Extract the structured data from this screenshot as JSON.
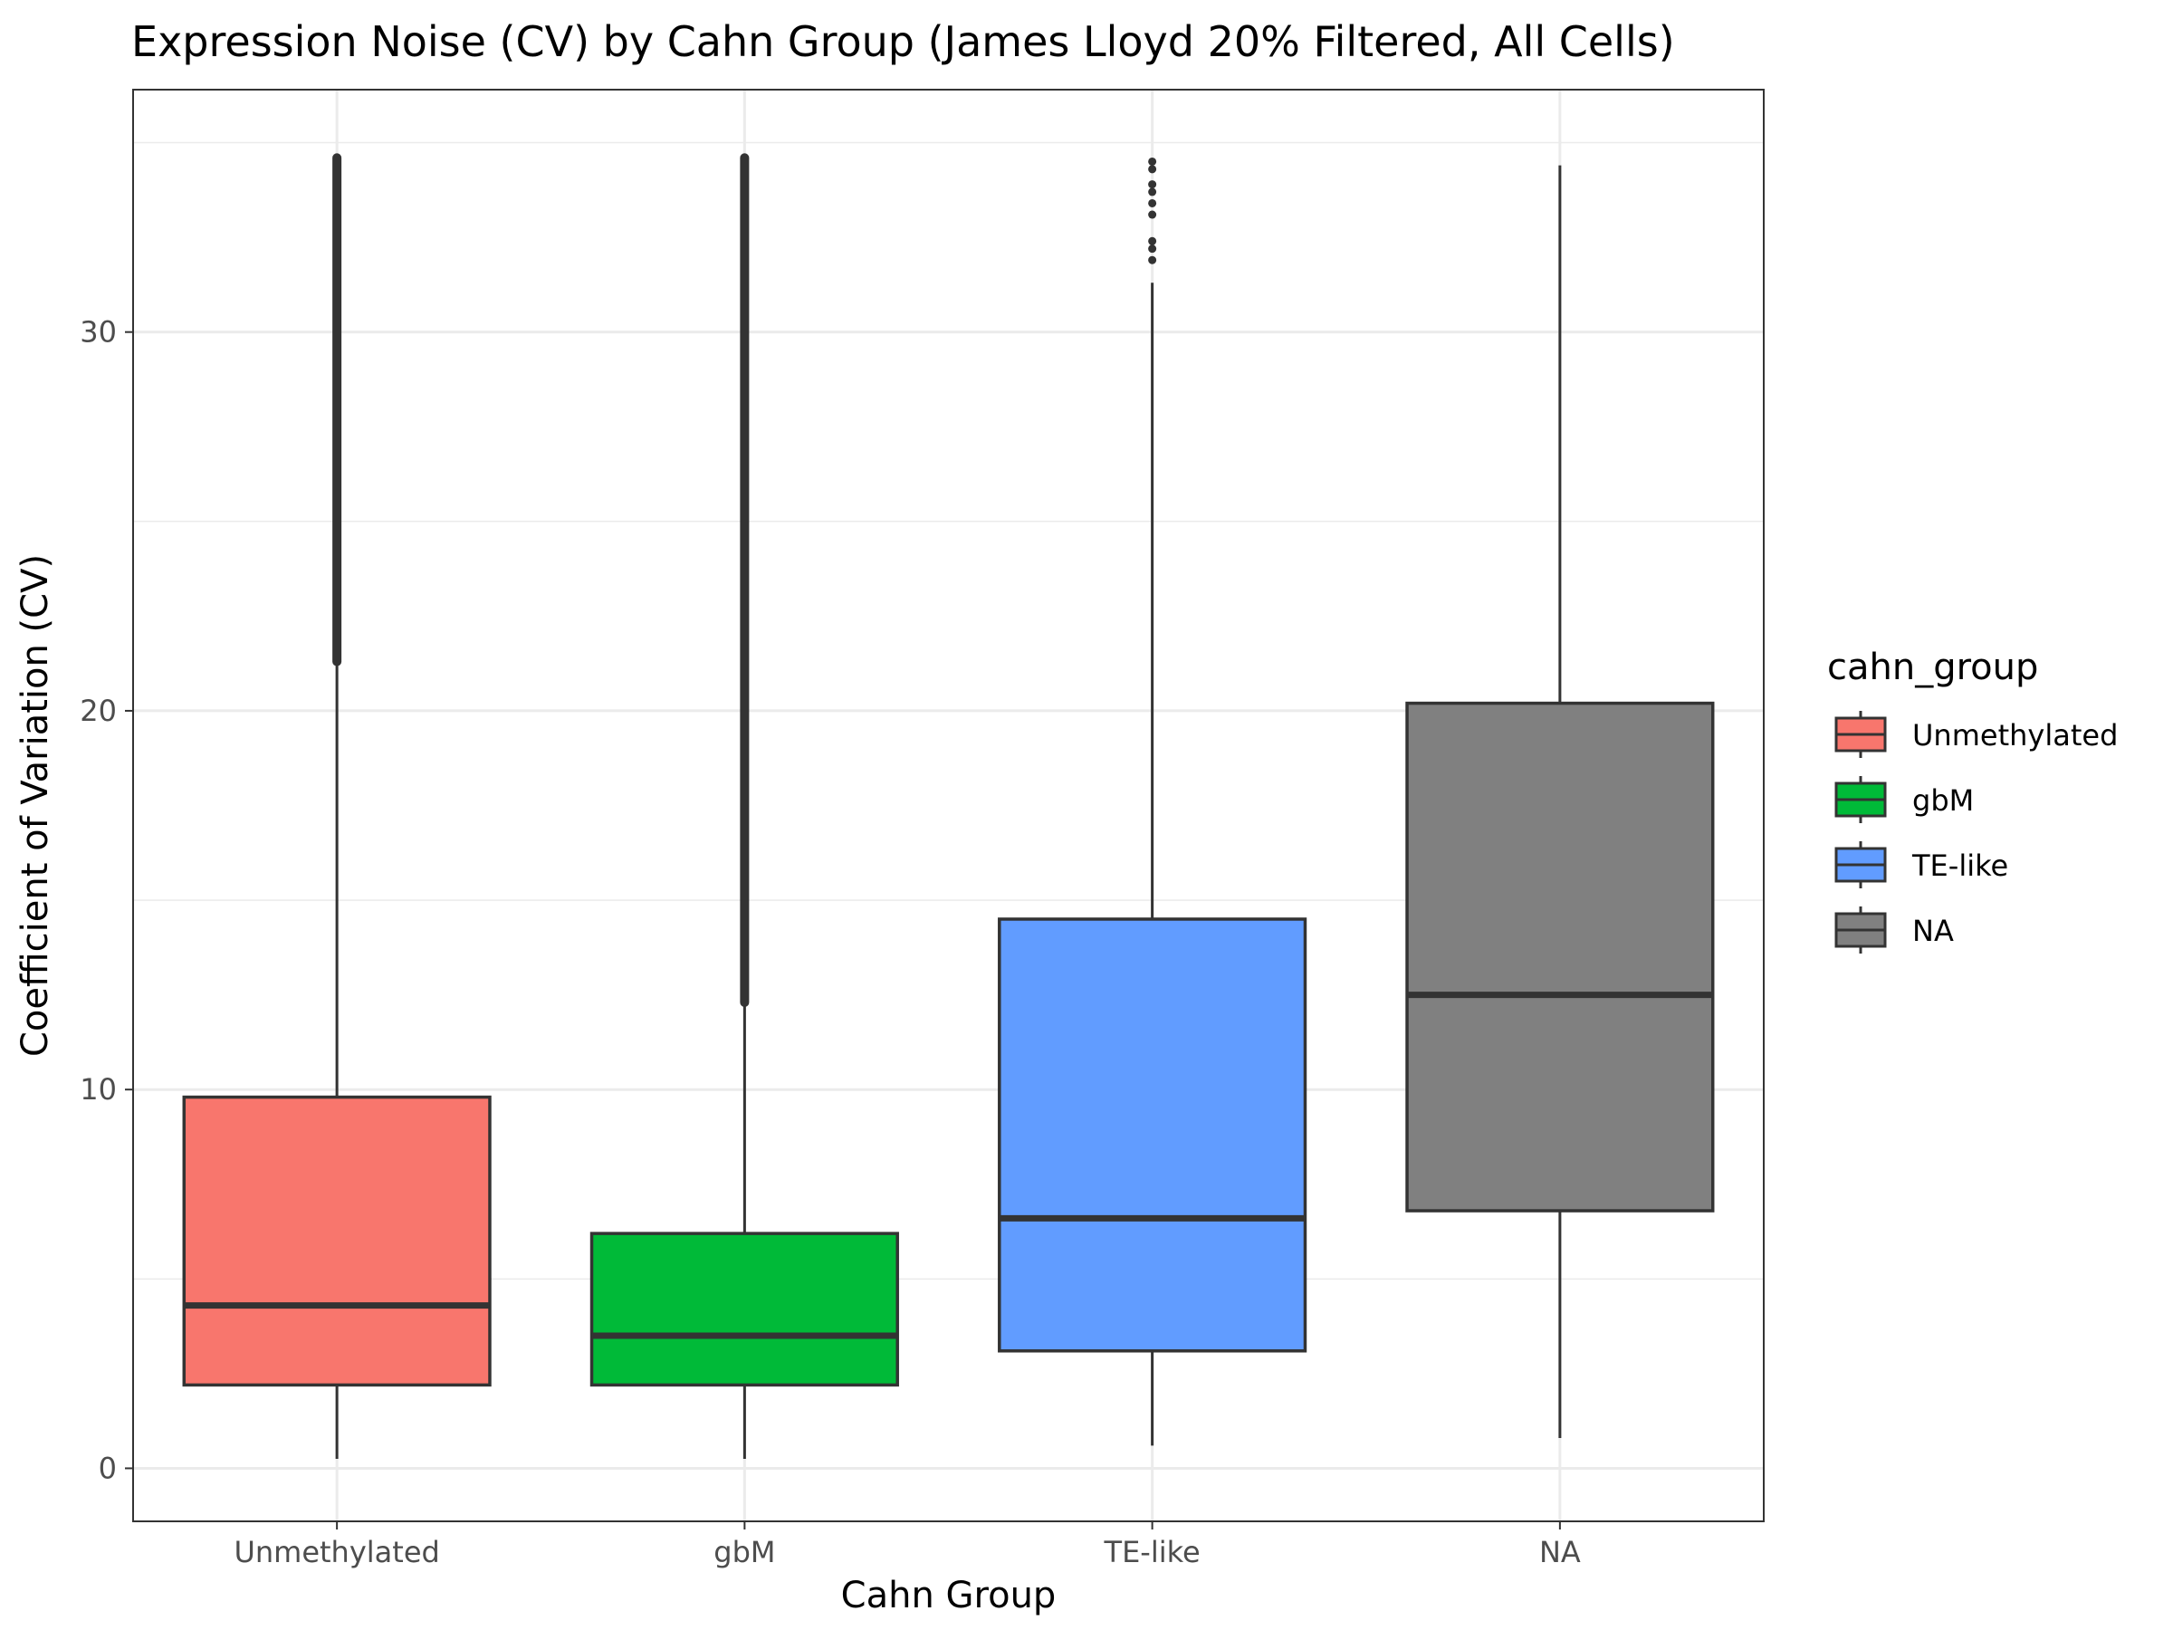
{
  "chart_data": {
    "type": "boxplot",
    "title": "Expression Noise (CV) by Cahn Group (James Lloyd 20% Filtered, All Cells)",
    "xlabel": "Cahn Group",
    "ylabel": "Coefficient of Variation (CV)",
    "ylim": [
      -1.4,
      36.4
    ],
    "yticks": [
      0,
      10,
      20,
      30
    ],
    "grid": true,
    "legend": {
      "title": "cahn_group",
      "position": "right",
      "entries": [
        "Unmethylated",
        "gbM",
        "TE-like",
        "NA"
      ]
    },
    "categories": [
      "Unmethylated",
      "gbM",
      "TE-like",
      "NA"
    ],
    "boxes": [
      {
        "category": "Unmethylated",
        "color": "#F8766D",
        "whisker_low": 0.25,
        "q1": 2.2,
        "median": 4.3,
        "q3": 9.8,
        "whisker_high": 21.2,
        "outlier_range": [
          21.3,
          34.6
        ],
        "outliers": []
      },
      {
        "category": "gbM",
        "color": "#00BA38",
        "whisker_low": 0.25,
        "q1": 2.2,
        "median": 3.5,
        "q3": 6.2,
        "whisker_high": 12.2,
        "outlier_range": [
          12.3,
          34.6
        ],
        "outliers": []
      },
      {
        "category": "TE-like",
        "color": "#619CFF",
        "whisker_low": 0.6,
        "q1": 3.1,
        "median": 6.6,
        "q3": 14.5,
        "whisker_high": 31.3,
        "outlier_range": null,
        "outliers": [
          31.9,
          32.2,
          32.4,
          33.1,
          33.4,
          33.7,
          33.9,
          34.3,
          34.5
        ]
      },
      {
        "category": "NA",
        "color": "#808080",
        "whisker_low": 0.8,
        "q1": 6.8,
        "median": 12.5,
        "q3": 20.2,
        "whisker_high": 34.4,
        "outlier_range": null,
        "outliers": []
      }
    ]
  }
}
